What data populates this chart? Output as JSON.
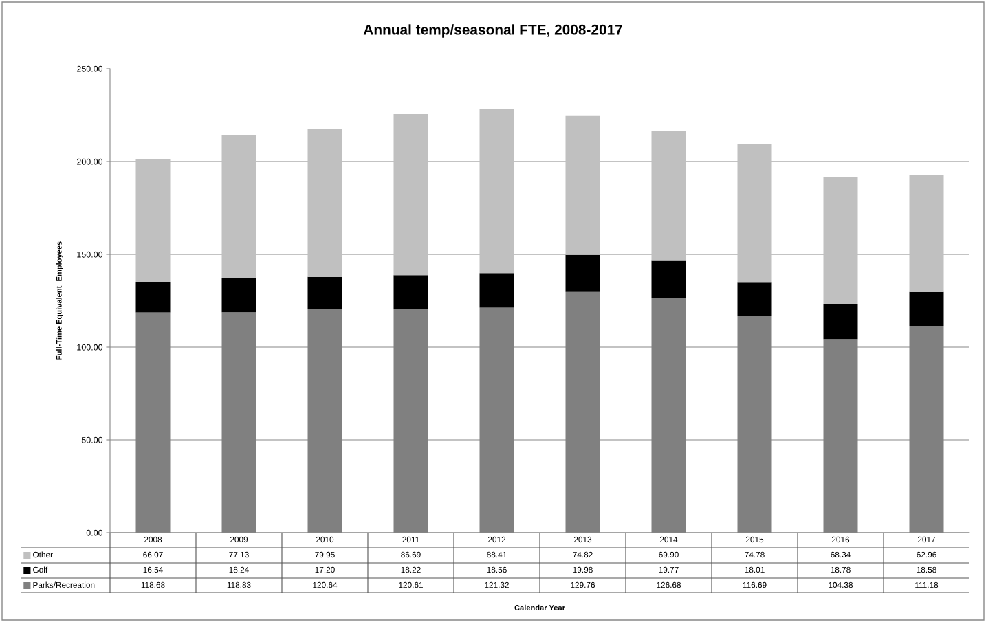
{
  "chart_data": {
    "type": "bar",
    "stacked": true,
    "title": "Annual temp/seasonal FTE, 2008-2017",
    "annotations": [
      "Calendar Year"
    ],
    "ylabel": "Full-Time Equivalent  Employees",
    "categories": [
      "2008",
      "2009",
      "2010",
      "2011",
      "2012",
      "2013",
      "2014",
      "2015",
      "2016",
      "2017"
    ],
    "series": [
      {
        "name": "Parks/Recreation",
        "color": "#808080",
        "values": [
          118.68,
          118.83,
          120.64,
          120.61,
          121.32,
          129.76,
          126.68,
          116.69,
          104.38,
          111.18
        ],
        "value_labels": [
          "118.68",
          "118.83",
          "120.64",
          "120.61",
          "121.32",
          "129.76",
          "126.68",
          "116.69",
          "104.38",
          "111.18"
        ]
      },
      {
        "name": "Golf",
        "color": "#000000",
        "values": [
          16.54,
          18.24,
          17.2,
          18.22,
          18.56,
          19.98,
          19.77,
          18.01,
          18.78,
          18.58
        ],
        "value_labels": [
          "16.54",
          "18.24",
          "17.20",
          "18.22",
          "18.56",
          "19.98",
          "19.77",
          "18.01",
          "18.78",
          "18.58"
        ]
      },
      {
        "name": "Other",
        "color": "#c0c0c0",
        "values": [
          66.07,
          77.13,
          79.95,
          86.69,
          88.41,
          74.82,
          69.9,
          74.78,
          68.34,
          62.96
        ],
        "value_labels": [
          "66.07",
          "77.13",
          "79.95",
          "86.69",
          "88.41",
          "74.82",
          "69.90",
          "74.78",
          "68.34",
          "62.96"
        ]
      }
    ],
    "ylim": [
      0,
      250
    ],
    "yticks": [
      {
        "value": 0,
        "label": "0.00"
      },
      {
        "value": 50,
        "label": "50.00"
      },
      {
        "value": 100,
        "label": "100.00"
      },
      {
        "value": 150,
        "label": "150.00"
      },
      {
        "value": 200,
        "label": "200.00"
      },
      {
        "value": 250,
        "label": "250.00"
      }
    ],
    "grid": "y",
    "legend": "bottom"
  }
}
